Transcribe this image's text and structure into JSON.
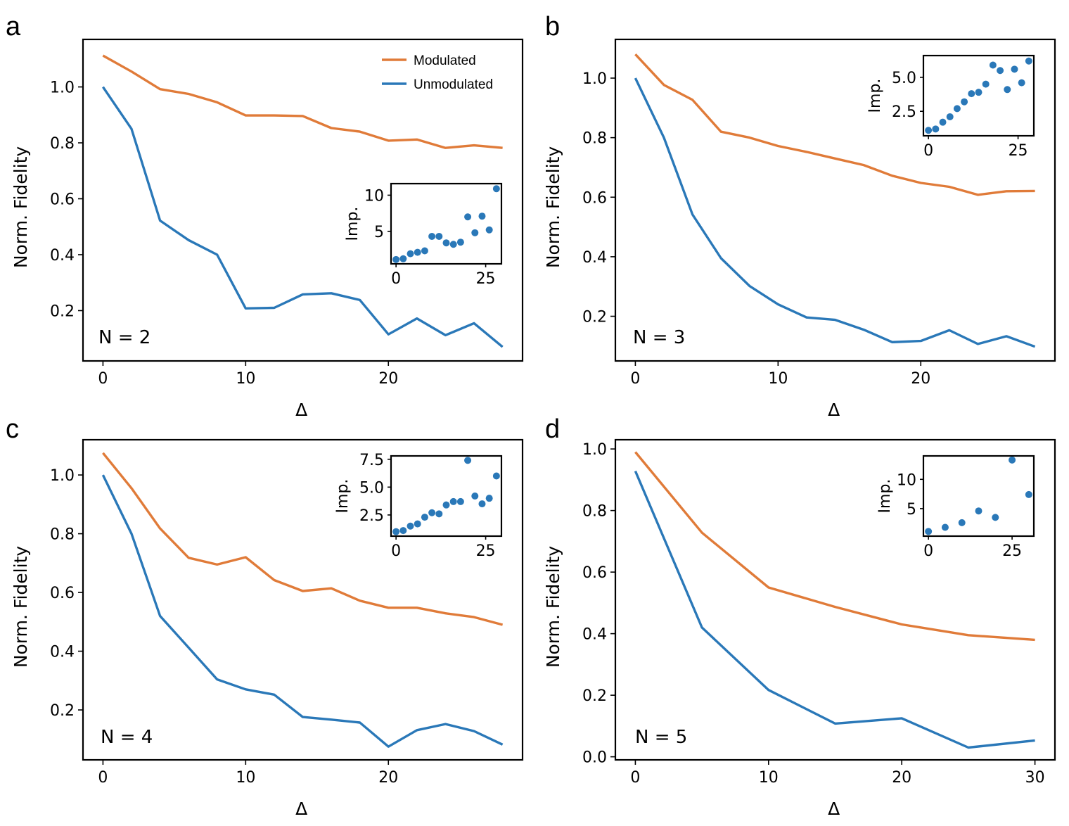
{
  "colors": {
    "modulated": "#e07b39",
    "unmodulated": "#2a78b8",
    "inset_points": "#2a78b8"
  },
  "legend": {
    "position": "top-right",
    "entries": [
      "Modulated",
      "Unmodulated"
    ]
  },
  "chart_data": [
    {
      "type": "line",
      "panel_label": "a",
      "annotation": "N = 2",
      "xlabel": "Δ",
      "ylabel": "Norm. Fidelity",
      "xlim": [
        -1.4,
        29.4
      ],
      "ylim": [
        0.02,
        1.17
      ],
      "xticks": [
        0,
        10,
        20
      ],
      "yticks": [
        0.2,
        0.4,
        0.6,
        0.8,
        1.0
      ],
      "x": [
        0,
        2,
        4,
        6,
        8,
        10,
        12,
        14,
        16,
        18,
        20,
        22,
        24,
        26,
        28
      ],
      "series": [
        {
          "name": "Modulated",
          "values": [
            1.112,
            1.055,
            0.992,
            0.975,
            0.945,
            0.898,
            0.898,
            0.896,
            0.853,
            0.84,
            0.808,
            0.812,
            0.782,
            0.791,
            0.782
          ]
        },
        {
          "name": "Unmodulated",
          "values": [
            1.0,
            0.85,
            0.522,
            0.452,
            0.4,
            0.208,
            0.21,
            0.258,
            0.262,
            0.238,
            0.115,
            0.172,
            0.112,
            0.155,
            0.07
          ]
        }
      ],
      "inset": {
        "type": "scatter",
        "ylabel": "Imp.",
        "xlim": [
          -1.4,
          29.4
        ],
        "ylim": [
          0.5,
          11.6
        ],
        "xticks": [
          0,
          25
        ],
        "yticks": [
          5,
          10
        ],
        "x": [
          0,
          2,
          4,
          6,
          8,
          10,
          12,
          14,
          16,
          18,
          20,
          22,
          24,
          26,
          28
        ],
        "y": [
          1.1,
          1.2,
          1.9,
          2.1,
          2.3,
          4.3,
          4.3,
          3.4,
          3.2,
          3.5,
          7.0,
          4.8,
          7.1,
          5.2,
          10.9
        ]
      }
    },
    {
      "type": "line",
      "panel_label": "b",
      "annotation": "N = 3",
      "xlabel": "Δ",
      "ylabel": "Norm. Fidelity",
      "xlim": [
        -1.4,
        29.4
      ],
      "ylim": [
        0.05,
        1.13
      ],
      "xticks": [
        0,
        10,
        20
      ],
      "yticks": [
        0.2,
        0.4,
        0.6,
        0.8,
        1.0
      ],
      "x": [
        0,
        2,
        4,
        6,
        8,
        10,
        12,
        14,
        16,
        18,
        20,
        22,
        24,
        26,
        28
      ],
      "series": [
        {
          "name": "Modulated",
          "values": [
            1.08,
            0.977,
            0.927,
            0.82,
            0.8,
            0.772,
            0.752,
            0.73,
            0.708,
            0.672,
            0.648,
            0.635,
            0.608,
            0.62,
            0.621
          ]
        },
        {
          "name": "Unmodulated",
          "values": [
            1.0,
            0.8,
            0.542,
            0.395,
            0.302,
            0.24,
            0.196,
            0.188,
            0.155,
            0.113,
            0.117,
            0.153,
            0.107,
            0.133,
            0.098
          ]
        }
      ],
      "inset": {
        "type": "scatter",
        "ylabel": "Imp.",
        "xlim": [
          -1.4,
          29.4
        ],
        "ylim": [
          0.7,
          6.6
        ],
        "xticks": [
          0,
          25
        ],
        "yticks": [
          2.5,
          5.0
        ],
        "x": [
          0,
          2,
          4,
          6,
          8,
          10,
          12,
          14,
          16,
          18,
          20,
          22,
          24,
          26,
          28
        ],
        "y": [
          1.1,
          1.2,
          1.7,
          2.1,
          2.7,
          3.2,
          3.8,
          3.9,
          4.5,
          5.9,
          5.5,
          4.1,
          5.6,
          4.6,
          6.2
        ]
      }
    },
    {
      "type": "line",
      "panel_label": "c",
      "annotation": "N = 4",
      "xlabel": "Δ",
      "ylabel": "Norm. Fidelity",
      "xlim": [
        -1.4,
        29.4
      ],
      "ylim": [
        0.03,
        1.12
      ],
      "xticks": [
        0,
        10,
        20
      ],
      "yticks": [
        0.2,
        0.4,
        0.6,
        0.8,
        1.0
      ],
      "x": [
        0,
        2,
        4,
        6,
        8,
        10,
        12,
        14,
        16,
        18,
        20,
        22,
        24,
        26,
        28
      ],
      "series": [
        {
          "name": "Modulated",
          "values": [
            1.075,
            0.955,
            0.818,
            0.718,
            0.695,
            0.72,
            0.642,
            0.605,
            0.614,
            0.572,
            0.548,
            0.548,
            0.529,
            0.516,
            0.49
          ]
        },
        {
          "name": "Unmodulated",
          "values": [
            1.0,
            0.8,
            0.52,
            0.412,
            0.304,
            0.27,
            0.252,
            0.176,
            0.167,
            0.157,
            0.075,
            0.131,
            0.152,
            0.128,
            0.082
          ]
        }
      ],
      "inset": {
        "type": "scatter",
        "ylabel": "Imp.",
        "xlim": [
          -1.4,
          29.4
        ],
        "ylim": [
          0.6,
          7.8
        ],
        "xticks": [
          0,
          25
        ],
        "yticks": [
          2.5,
          5.0,
          7.5
        ],
        "x": [
          0,
          2,
          4,
          6,
          8,
          10,
          12,
          14,
          16,
          18,
          20,
          22,
          24,
          26,
          28
        ],
        "y": [
          1.0,
          1.1,
          1.5,
          1.7,
          2.3,
          2.7,
          2.6,
          3.4,
          3.7,
          3.7,
          7.4,
          4.2,
          3.5,
          4.0,
          6.0
        ]
      }
    },
    {
      "type": "line",
      "panel_label": "d",
      "annotation": "N = 5",
      "xlabel": "Δ",
      "ylabel": "Norm. Fidelity",
      "xlim": [
        -1.5,
        31.5
      ],
      "ylim": [
        -0.01,
        1.03
      ],
      "xticks": [
        0,
        10,
        20,
        30
      ],
      "yticks": [
        0.0,
        0.2,
        0.4,
        0.6,
        0.8,
        1.0
      ],
      "x": [
        0,
        5,
        10,
        15,
        20,
        25,
        30
      ],
      "series": [
        {
          "name": "Modulated",
          "values": [
            0.99,
            0.728,
            0.55,
            0.487,
            0.43,
            0.395,
            0.38
          ]
        },
        {
          "name": "Unmodulated",
          "values": [
            0.928,
            0.42,
            0.217,
            0.108,
            0.125,
            0.03,
            0.053
          ]
        }
      ],
      "inset": {
        "type": "scatter",
        "ylabel": "Imp.",
        "xlim": [
          -1.5,
          31.5
        ],
        "ylim": [
          0.3,
          14.0
        ],
        "xticks": [
          0,
          25
        ],
        "yticks": [
          5,
          10
        ],
        "x": [
          0,
          5,
          10,
          15,
          20,
          25,
          30
        ],
        "y": [
          1.1,
          1.8,
          2.6,
          4.6,
          3.5,
          13.3,
          7.4
        ]
      }
    }
  ]
}
